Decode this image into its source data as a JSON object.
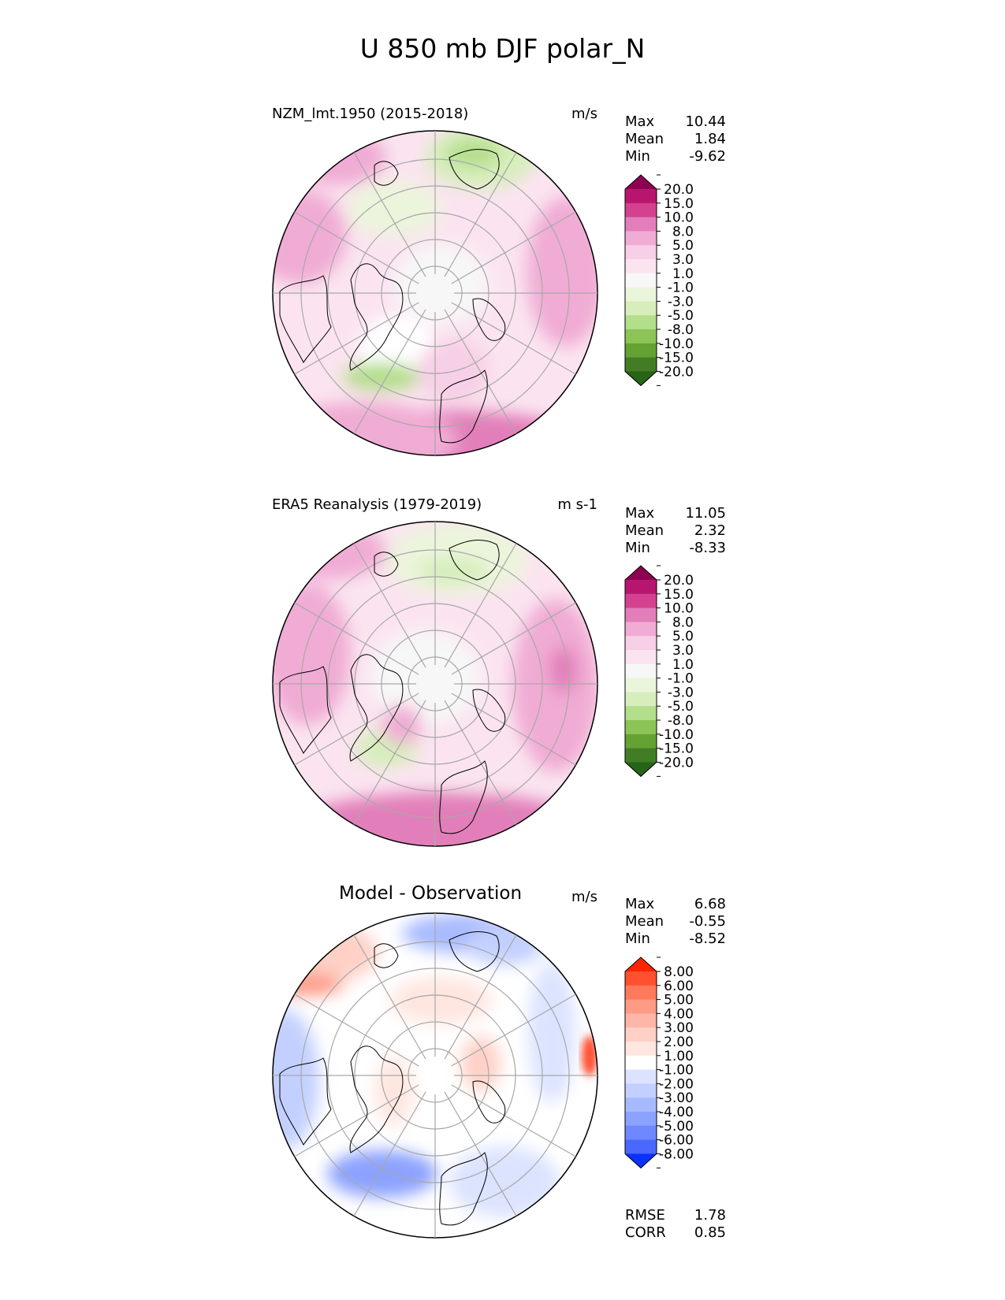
{
  "figure_title": "U 850 mb DJF polar_N",
  "panels": [
    {
      "title": "NZM_lmt.1950 (2015-2018)",
      "units": "m/s",
      "stats": [
        {
          "label": "Max",
          "value": "10.44"
        },
        {
          "label": "Mean",
          "value": "1.84"
        },
        {
          "label": "Min",
          "value": "-9.62"
        }
      ],
      "colorbar": {
        "labels": [
          "20.0",
          "15.0",
          "10.0",
          "8.0",
          "5.0",
          "3.0",
          "1.0",
          "-1.0",
          "-3.0",
          "-5.0",
          "-8.0",
          "-10.0",
          "-15.0",
          "-20.0"
        ],
        "colors": [
          "#8e0152",
          "#b8166e",
          "#d4418f",
          "#e27fba",
          "#f0acd4",
          "#f7cfe6",
          "#fbe4f0",
          "#f7f7f7",
          "#ebf5dc",
          "#d7eebc",
          "#b3de8a",
          "#8cc457",
          "#64a233",
          "#417d25",
          "#276419"
        ]
      }
    },
    {
      "title": "ERA5 Reanalysis (1979-2019)",
      "units": "m s-1",
      "stats": [
        {
          "label": "Max",
          "value": "11.05"
        },
        {
          "label": "Mean",
          "value": "2.32"
        },
        {
          "label": "Min",
          "value": "-8.33"
        }
      ],
      "colorbar": {
        "labels": [
          "20.0",
          "15.0",
          "10.0",
          "8.0",
          "5.0",
          "3.0",
          "1.0",
          "-1.0",
          "-3.0",
          "-5.0",
          "-8.0",
          "-10.0",
          "-15.0",
          "-20.0"
        ],
        "colors": [
          "#8e0152",
          "#b8166e",
          "#d4418f",
          "#e27fba",
          "#f0acd4",
          "#f7cfe6",
          "#fbe4f0",
          "#f7f7f7",
          "#ebf5dc",
          "#d7eebc",
          "#b3de8a",
          "#8cc457",
          "#64a233",
          "#417d25",
          "#276419"
        ]
      }
    },
    {
      "title": "Model - Observation",
      "units": "m/s",
      "stats": [
        {
          "label": "Max",
          "value": "6.68"
        },
        {
          "label": "Mean",
          "value": "-0.55"
        },
        {
          "label": "Min",
          "value": "-8.52"
        }
      ],
      "extra_stats": [
        {
          "label": "RMSE",
          "value": "1.78"
        },
        {
          "label": "CORR",
          "value": "0.85"
        }
      ],
      "colorbar": {
        "labels": [
          "8.00",
          "6.00",
          "5.00",
          "4.00",
          "3.00",
          "2.00",
          "1.00",
          "-1.00",
          "-2.00",
          "-3.00",
          "-4.00",
          "-5.00",
          "-6.00",
          "-8.00"
        ],
        "colors": [
          "#ff2400",
          "#ff5030",
          "#ff7a5a",
          "#ff9a84",
          "#ffb6a6",
          "#ffd0c6",
          "#ffe6e0",
          "#ffffff",
          "#dbe3ff",
          "#c3d0ff",
          "#a8baff",
          "#8ca2ff",
          "#6e88ff",
          "#4a68ff",
          "#0a32ff"
        ]
      }
    }
  ]
}
